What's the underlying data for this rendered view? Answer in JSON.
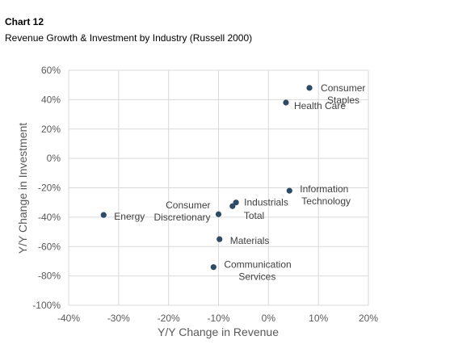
{
  "header": {
    "chart_number": "Chart 12",
    "title": "Revenue Growth & Investment by Industry (Russell 2000)"
  },
  "chart_data": {
    "type": "scatter",
    "title": "Revenue Growth & Investment by Industry (Russell 2000)",
    "xlabel": "Y/Y Change in Revenue",
    "ylabel": "Y/Y Change in Investment",
    "xlim": [
      -40,
      20
    ],
    "ylim": [
      -100,
      60
    ],
    "x_ticks": [
      -40,
      -30,
      -20,
      -10,
      0,
      10,
      20
    ],
    "y_ticks": [
      -100,
      -80,
      -60,
      -40,
      -20,
      0,
      20,
      40,
      60
    ],
    "x_tick_labels": [
      "-40%",
      "-30%",
      "-20%",
      "-10%",
      "0%",
      "10%",
      "20%"
    ],
    "y_tick_labels": [
      "-100%",
      "-80%",
      "-60%",
      "-40%",
      "-20%",
      "0%",
      "20%",
      "40%",
      "60%"
    ],
    "grid": true,
    "legend": "none",
    "marker_color": "#2e4a66",
    "points": [
      {
        "label": [
          "Consumer",
          "Staples"
        ],
        "x": 8.2,
        "y": 48
      },
      {
        "label": [
          "Health Care"
        ],
        "x": 3.5,
        "y": 38
      },
      {
        "label": [
          "Information",
          "Technology"
        ],
        "x": 4.2,
        "y": -22
      },
      {
        "label": [
          "Industrials"
        ],
        "x": -6.5,
        "y": -30
      },
      {
        "label": [
          "Total"
        ],
        "x": -7.2,
        "y": -32.5
      },
      {
        "label": [
          "Consumer",
          "Discretionary"
        ],
        "x": -10,
        "y": -38
      },
      {
        "label": [
          "Energy"
        ],
        "x": -33,
        "y": -38.5
      },
      {
        "label": [
          "Materials"
        ],
        "x": -9.8,
        "y": -55
      },
      {
        "label": [
          "Communication",
          "Services"
        ],
        "x": -11,
        "y": -74
      }
    ]
  }
}
